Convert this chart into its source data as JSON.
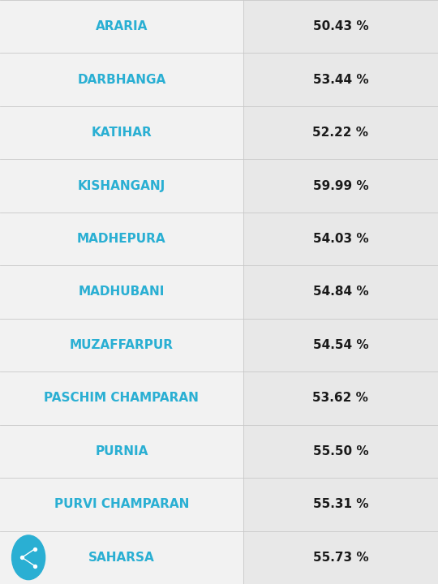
{
  "rows": [
    {
      "district": "ARARIA",
      "percentage": "50.43 %"
    },
    {
      "district": "DARBHANGA",
      "percentage": "53.44 %"
    },
    {
      "district": "KATIHAR",
      "percentage": "52.22 %"
    },
    {
      "district": "KISHANGANJ",
      "percentage": "59.99 %"
    },
    {
      "district": "MADHEPURA",
      "percentage": "54.03 %"
    },
    {
      "district": "MADHUBANI",
      "percentage": "54.84 %"
    },
    {
      "district": "MUZAFFARPUR",
      "percentage": "54.54 %"
    },
    {
      "district": "PASCHIM CHAMPARAN",
      "percentage": "53.62 %"
    },
    {
      "district": "PURNIA",
      "percentage": "55.50 %"
    },
    {
      "district": "PURVI CHAMPARAN",
      "percentage": "55.31 %"
    },
    {
      "district": "SAHARSA",
      "percentage": "55.73 %"
    }
  ],
  "district_color": "#2aafd3",
  "percentage_color": "#1a1a1a",
  "row_bg_left": "#f2f2f2",
  "row_bg_right": "#e8e8e8",
  "divider_color": "#c8c8c8",
  "share_button_color": "#2aafd3",
  "font_size_district": 11,
  "font_size_percentage": 11,
  "col_split": 0.555,
  "fig_width": 5.4,
  "fig_height": 7.2,
  "dpi": 100
}
